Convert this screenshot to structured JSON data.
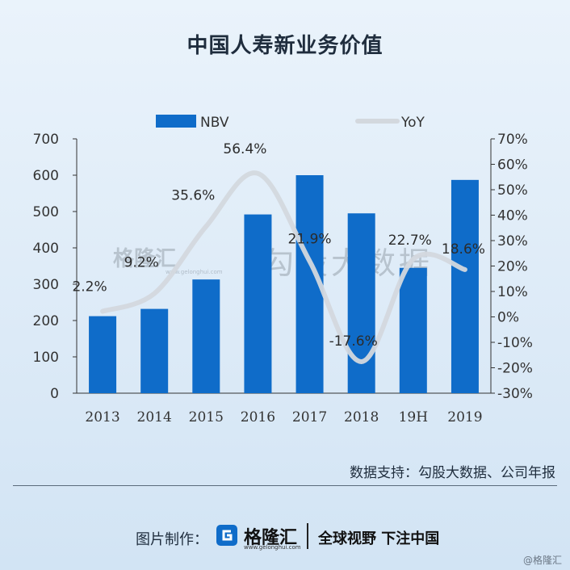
{
  "title": "中国人寿新业务价值",
  "source": "数据支持：勾股大数据、公司年报",
  "footer": {
    "credit_label": "图片制作：",
    "logo_text": "格隆汇",
    "logo_url": "www.gelonghui.com",
    "slogan": "全球视野 下注中国"
  },
  "watermark": {
    "big": "勾股大数据",
    "logo": "格隆汇",
    "logo_url": "www.gelonghui.com",
    "corner": "@格隆汇"
  },
  "colors": {
    "bar": "#0f6cc9",
    "line": "#d3d8de",
    "text": "#1f2d3d"
  },
  "chart_data": {
    "type": "bar",
    "categories": [
      "2013",
      "2014",
      "2015",
      "2016",
      "2017",
      "2018",
      "19H",
      "2019"
    ],
    "series": [
      {
        "name": "NBV",
        "type": "bar",
        "axis": "left",
        "values": [
          212,
          232,
          313,
          492,
          600,
          495,
          345,
          587
        ]
      },
      {
        "name": "YoY",
        "type": "line",
        "axis": "right",
        "values": [
          2.2,
          9.2,
          35.6,
          56.4,
          21.9,
          -17.6,
          22.7,
          18.6
        ],
        "labels": [
          "2.2%",
          "9.2%",
          "35.6%",
          "56.4%",
          "21.9%",
          "-17.6%",
          "22.7%",
          "18.6%"
        ]
      }
    ],
    "y_left": {
      "min": 0,
      "max": 700,
      "ticks": [
        "0",
        "100",
        "200",
        "300",
        "400",
        "500",
        "600",
        "700"
      ]
    },
    "y_right": {
      "min": -30,
      "max": 70,
      "ticks": [
        "-30%",
        "-20%",
        "-10%",
        "0%",
        "10%",
        "20%",
        "30%",
        "40%",
        "50%",
        "60%",
        "70%"
      ]
    },
    "legend": "top",
    "grid": false
  }
}
